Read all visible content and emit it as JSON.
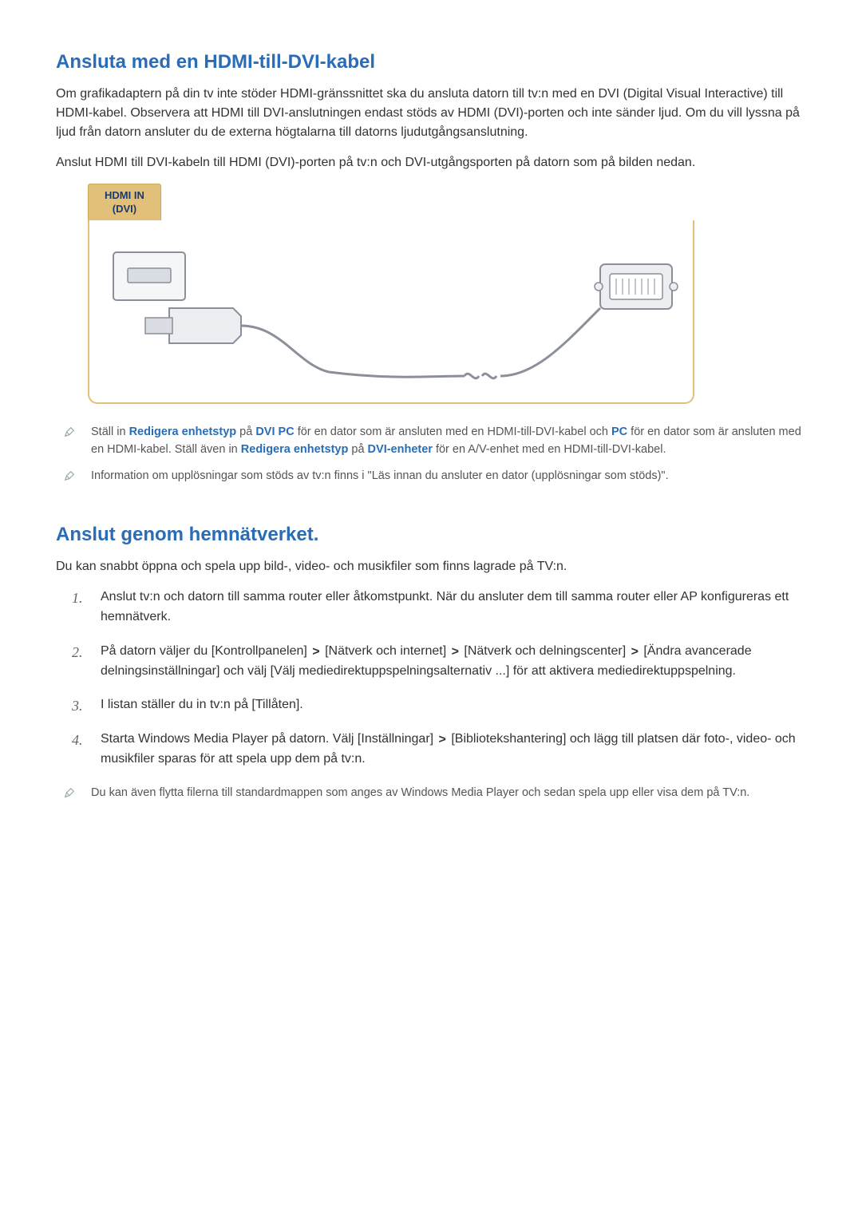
{
  "section1": {
    "title": "Ansluta med en HDMI-till-DVI-kabel",
    "title_color": "#2a6cb5",
    "para1": "Om grafikadaptern på din tv inte stöder HDMI-gränssnittet ska du ansluta datorn till tv:n med en DVI (Digital Visual Interactive) till HDMI-kabel. Observera att HDMI till DVI-anslutningen endast stöds av HDMI (DVI)-porten och inte sänder ljud. Om du vill lyssna på ljud från datorn ansluter du de externa högtalarna till datorns ljudutgångsanslutning.",
    "para2": "Anslut HDMI till DVI-kabeln till HDMI (DVI)-porten på tv:n och DVI-utgångsporten på datorn som på bilden nedan.",
    "diagram": {
      "port_label_line1": "HDMI IN",
      "port_label_line2": "(DVI)",
      "label_bg": "#e3c07a",
      "label_border": "#c9a85a",
      "label_text_color": "#1a3a6e",
      "box_border": "#e3c07a",
      "cable_color": "#8a8f99",
      "connector_fill": "#d9dde3"
    },
    "note1": {
      "pre": "Ställ in ",
      "em1": "Redigera enhetstyp",
      "mid1": " på ",
      "em2": "DVI PC",
      "mid2": " för en dator som är ansluten med en HDMI-till-DVI-kabel och ",
      "em3": "PC",
      "mid3": " för en dator som är ansluten med en HDMI-kabel. Ställ även in ",
      "em4": "Redigera enhetstyp",
      "mid4": " på ",
      "em5": "DVI-enheter",
      "post": " för en A/V-enhet med en HDMI-till-DVI-kabel."
    },
    "note2": "Information om upplösningar som stöds av tv:n finns i \"Läs innan du ansluter en dator (upplösningar som stöds)\"."
  },
  "section2": {
    "title": "Anslut genom hemnätverket.",
    "title_color": "#2a6cb5",
    "intro": "Du kan snabbt öppna och spela upp bild-, video- och musikfiler som finns lagrade på TV:n.",
    "steps": [
      "Anslut tv:n och datorn till samma router eller åtkomstpunkt. När du ansluter dem till samma router eller AP konfigureras ett hemnätverk.",
      "På datorn väljer du [Kontrollpanelen] ❯ [Nätverk och internet] ❯ [Nätverk och delningscenter] ❯ [Ändra avancerade delningsinställningar] och välj [Välj mediedirektuppspelningsalternativ ...] för att aktivera mediedirektuppspelning.",
      "I listan ställer du in tv:n på [Tillåten].",
      "Starta Windows Media Player på datorn. Välj [Inställningar] ❯ [Bibliotekshantering] och lägg till platsen där foto-, video- och musikfiler sparas för att spela upp dem på tv:n."
    ],
    "note": "Du kan även flytta filerna till standardmappen som anges av Windows Media Player och sedan spela upp eller visa dem på TV:n."
  },
  "typography": {
    "heading_fontsize": 24,
    "body_fontsize": 16,
    "note_fontsize": 14.5,
    "body_color": "#333333",
    "note_color": "#555555",
    "background": "#ffffff"
  }
}
